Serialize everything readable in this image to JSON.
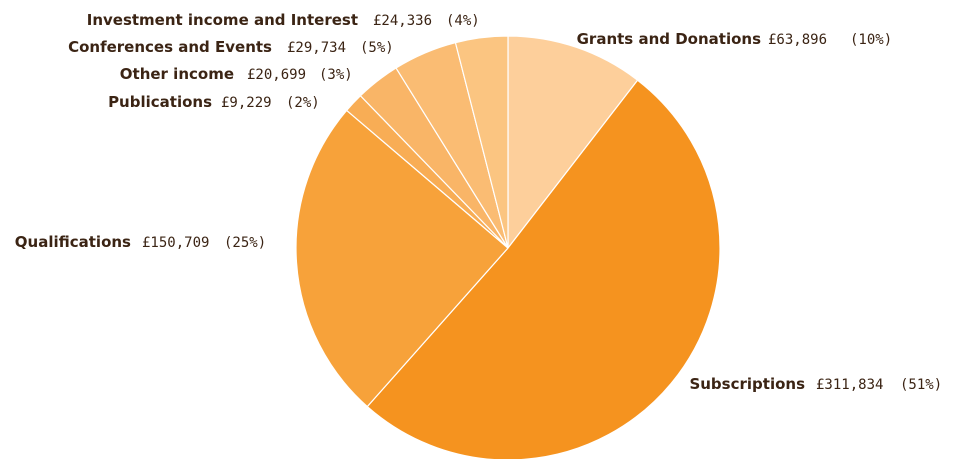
{
  "chart_data": {
    "type": "pie",
    "slices": [
      {
        "name": "Grants and Donations",
        "amount": "£63,896",
        "pct": "(10%)",
        "value": 63896,
        "color": "#fdcf9b"
      },
      {
        "name": "Subscriptions",
        "amount": "£311,834",
        "pct": "(51%)",
        "value": 311834,
        "color": "#f5931f"
      },
      {
        "name": "Qualifications",
        "amount": "£150,709",
        "pct": "(25%)",
        "value": 150709,
        "color": "#f7a23a"
      },
      {
        "name": "Publications",
        "amount": "£9,229",
        "pct": "(2%)",
        "value": 9229,
        "color": "#f8ad55"
      },
      {
        "name": "Other income",
        "amount": "£20,699",
        "pct": "(3%)",
        "value": 20699,
        "color": "#f9b567"
      },
      {
        "name": "Conferences and Events",
        "amount": "£29,734",
        "pct": "(5%)",
        "value": 29734,
        "color": "#fabc73"
      },
      {
        "name": "Investment income and Interest",
        "amount": "£24,336",
        "pct": "(4%)",
        "value": 24336,
        "color": "#fbc581"
      }
    ]
  }
}
